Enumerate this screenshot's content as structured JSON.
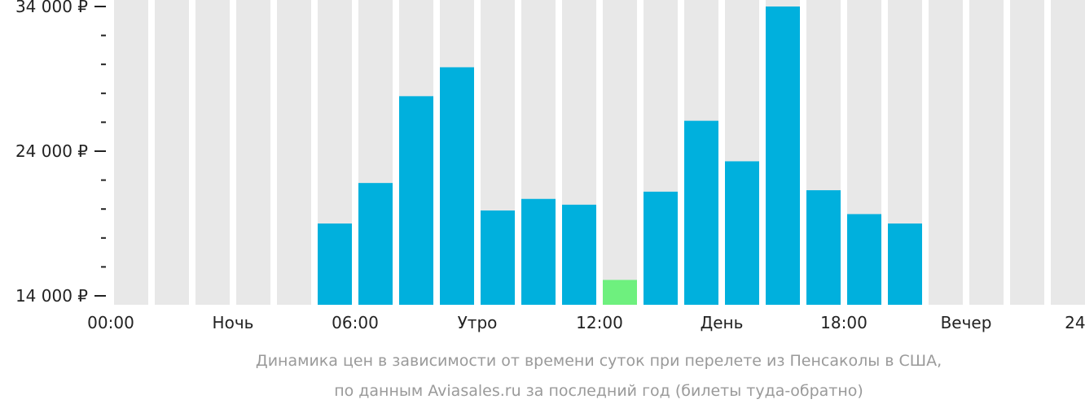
{
  "chart_data": {
    "type": "bar",
    "title": "",
    "caption": [
      "Динамика цен в зависимости от времени суток при перелете из Пенсаколы в США,",
      "по данным Aviasales.ru за последний год (билеты туда-обратно)"
    ],
    "categories": [
      "0",
      "1",
      "2",
      "3",
      "4",
      "5",
      "6",
      "7",
      "8",
      "9",
      "10",
      "11",
      "12",
      "13",
      "14",
      "15",
      "16",
      "17",
      "18",
      "19",
      "20",
      "21",
      "22",
      "23"
    ],
    "values": [
      null,
      null,
      null,
      null,
      null,
      19000,
      21800,
      27800,
      29800,
      19900,
      20700,
      20300,
      15100,
      21200,
      26100,
      23300,
      34000,
      21300,
      19650,
      19000,
      null,
      null,
      null,
      null
    ],
    "highlight_index": 12,
    "y_ticks": [
      {
        "value": 34000,
        "label": "34 000 ₽"
      },
      {
        "value": 24000,
        "label": "24 000 ₽"
      },
      {
        "value": 14000,
        "label": "14 000 ₽"
      }
    ],
    "y_minor_step": 2000,
    "ylim": [
      14000,
      34000
    ],
    "x_labels": [
      {
        "pos": 0,
        "label": "00:00"
      },
      {
        "pos": 3,
        "label": "Ночь"
      },
      {
        "pos": 6,
        "label": "06:00"
      },
      {
        "pos": 9,
        "label": "Утро"
      },
      {
        "pos": 12,
        "label": "12:00"
      },
      {
        "pos": 15,
        "label": "День"
      },
      {
        "pos": 18,
        "label": "18:00"
      },
      {
        "pos": 21,
        "label": "Вечер"
      },
      {
        "pos": 24,
        "label": "24:00"
      }
    ],
    "colors": {
      "bar": "#00b0dd",
      "highlight": "#6ef07e",
      "empty": "#e8e8e8"
    }
  }
}
